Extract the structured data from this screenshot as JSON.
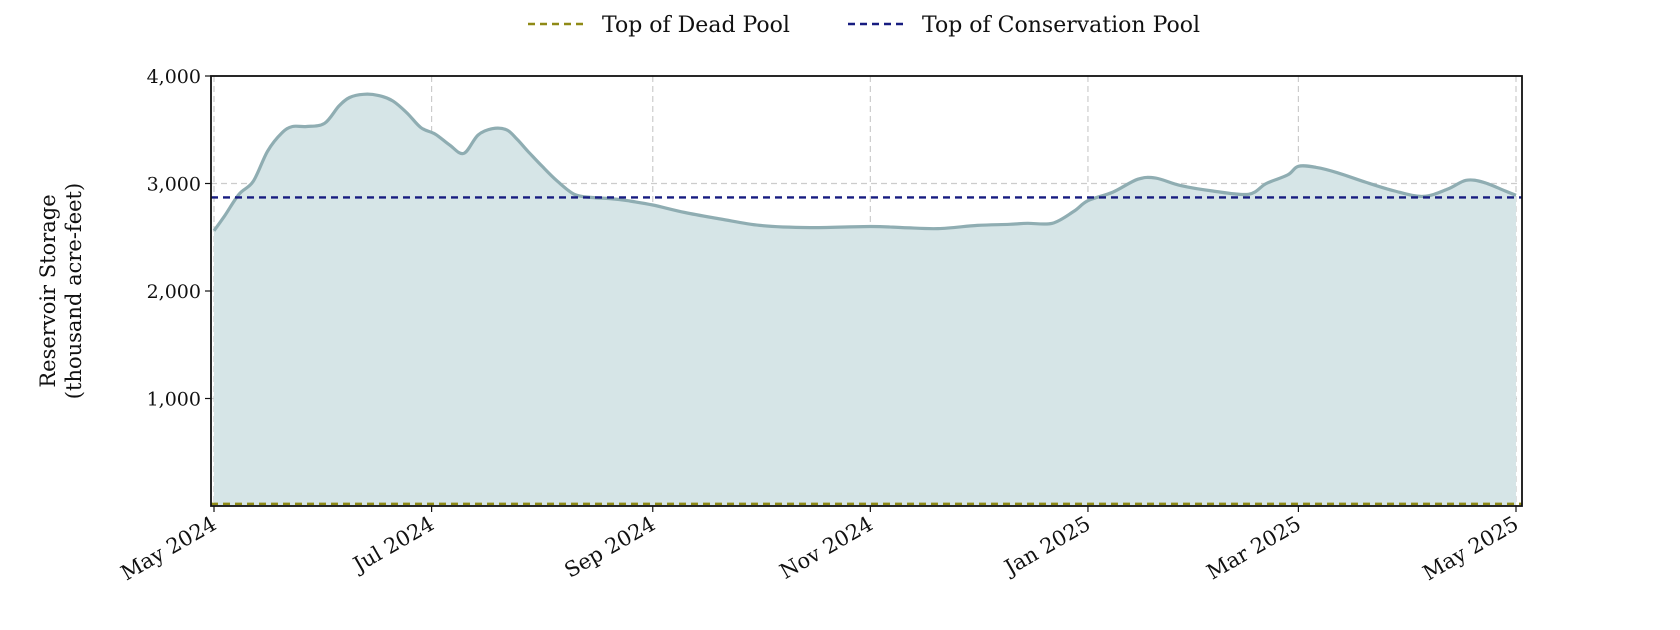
{
  "chart_data": {
    "type": "area",
    "title": "",
    "ylabel_lines": [
      "Reservoir Storage",
      "(thousand acre-feet)"
    ],
    "xlabel": "",
    "x_start": "2024-05-01",
    "x_end": "2025-05-01",
    "ylim": [
      0,
      4000
    ],
    "y_ticks": [
      1000,
      2000,
      3000,
      4000
    ],
    "y_tick_labels": [
      "1,000",
      "2,000",
      "3,000",
      "4,000"
    ],
    "x_ticks": [
      "2024-05-01",
      "2024-07-01",
      "2024-09-01",
      "2024-11-01",
      "2025-01-01",
      "2025-03-01",
      "2025-05-01"
    ],
    "x_tick_labels": [
      "May 2024",
      "Jul 2024",
      "Sep 2024",
      "Nov 2024",
      "Jan 2025",
      "Mar 2025",
      "May 2025"
    ],
    "grid": true,
    "legend_position": "top-center",
    "series": [
      {
        "type": "area",
        "color": "#8fadb2",
        "fill": "#d6e5e7",
        "x": [
          "2024-05-01",
          "2024-05-04",
          "2024-05-08",
          "2024-05-12",
          "2024-05-16",
          "2024-05-20",
          "2024-05-23",
          "2024-05-27",
          "2024-06-01",
          "2024-06-05",
          "2024-06-08",
          "2024-06-12",
          "2024-06-16",
          "2024-06-20",
          "2024-06-24",
          "2024-06-28",
          "2024-07-02",
          "2024-07-06",
          "2024-07-10",
          "2024-07-14",
          "2024-07-18",
          "2024-07-22",
          "2024-07-25",
          "2024-07-28",
          "2024-08-01",
          "2024-08-05",
          "2024-08-10",
          "2024-08-15",
          "2024-08-20",
          "2024-08-25",
          "2024-09-01",
          "2024-09-10",
          "2024-09-20",
          "2024-10-01",
          "2024-10-15",
          "2024-11-01",
          "2024-11-10",
          "2024-11-20",
          "2024-12-01",
          "2024-12-10",
          "2024-12-15",
          "2024-12-22",
          "2024-12-28",
          "2025-01-01",
          "2025-01-08",
          "2025-01-15",
          "2025-01-20",
          "2025-01-27",
          "2025-02-05",
          "2025-02-15",
          "2025-02-20",
          "2025-02-26",
          "2025-03-01",
          "2025-03-06",
          "2025-03-12",
          "2025-03-20",
          "2025-03-28",
          "2025-04-05",
          "2025-04-12",
          "2025-04-17",
          "2025-04-22",
          "2025-04-28",
          "2025-05-01"
        ],
        "values": [
          2560,
          2700,
          2900,
          3020,
          3300,
          3470,
          3530,
          3530,
          3560,
          3720,
          3800,
          3830,
          3820,
          3770,
          3660,
          3520,
          3460,
          3360,
          3280,
          3450,
          3510,
          3500,
          3410,
          3300,
          3160,
          3030,
          2900,
          2870,
          2860,
          2840,
          2800,
          2730,
          2670,
          2610,
          2590,
          2600,
          2590,
          2580,
          2610,
          2620,
          2630,
          2630,
          2740,
          2840,
          2920,
          3040,
          3050,
          2980,
          2930,
          2900,
          3000,
          3080,
          3160,
          3150,
          3100,
          3010,
          2930,
          2880,
          2950,
          3030,
          3010,
          2930,
          2890
        ]
      }
    ],
    "reference_lines": [
      {
        "name": "Top of Dead Pool",
        "value": 20,
        "color": "#8f8a16"
      },
      {
        "name": "Top of Conservation Pool",
        "value": 2870,
        "color": "#171c80"
      }
    ]
  }
}
